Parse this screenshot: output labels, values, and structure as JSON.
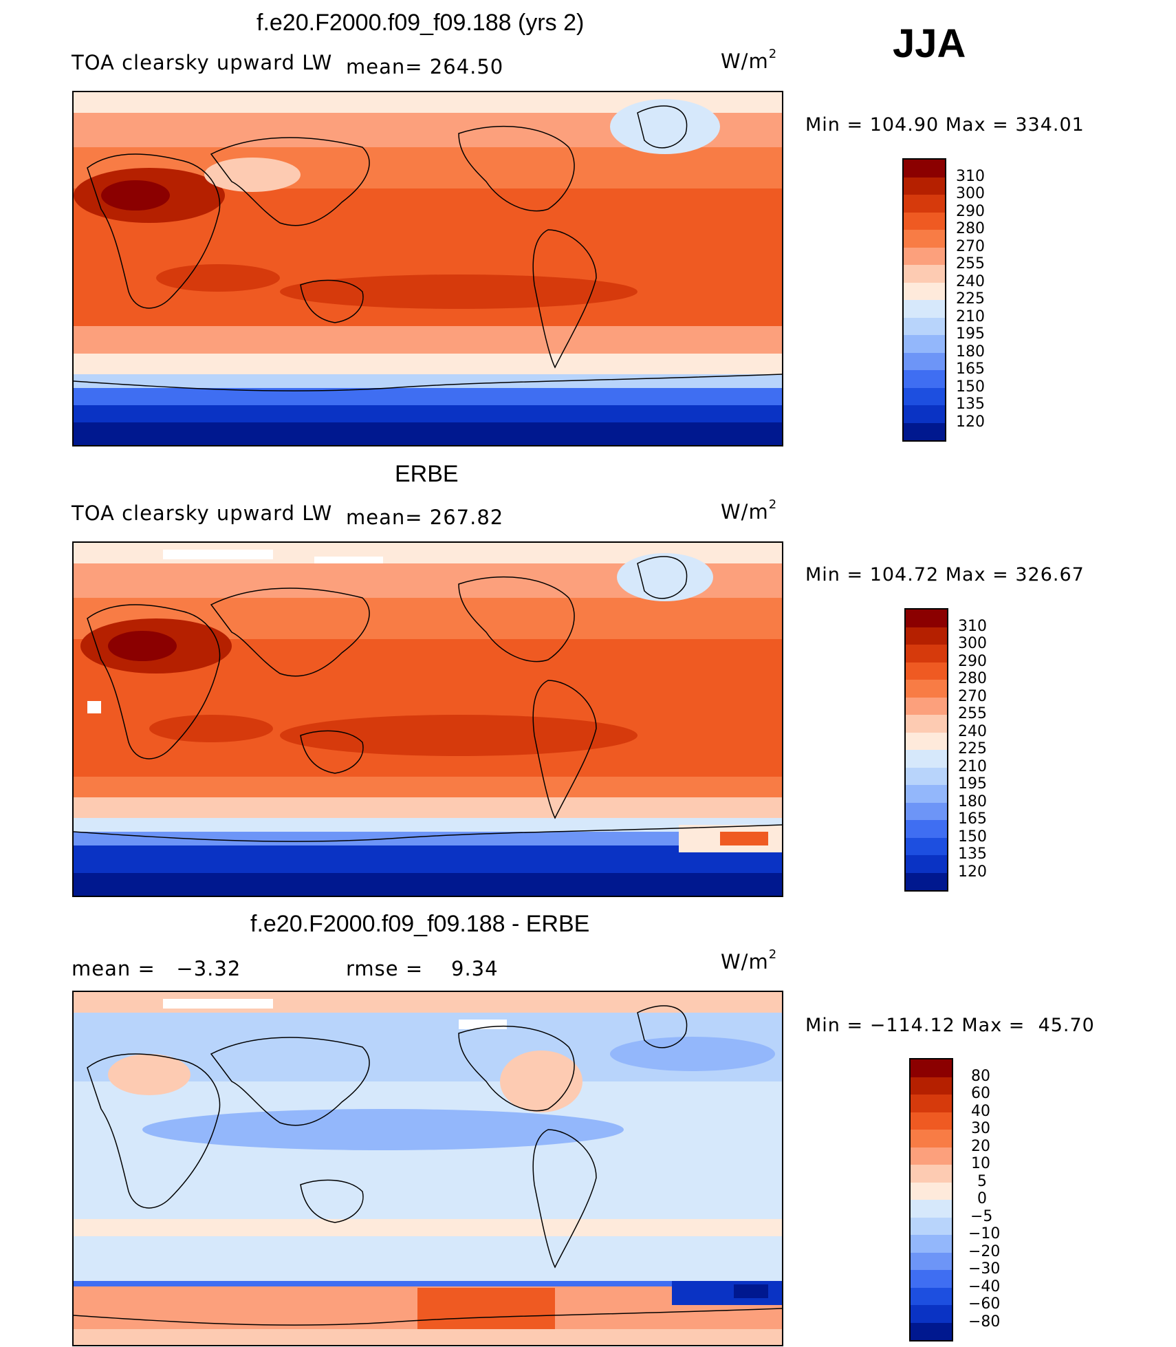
{
  "season": "JJA",
  "panels": [
    {
      "title": "f.e20.F2000.f09_f09.188 (yrs 2)",
      "variable": "TOA clearsky upward LW",
      "stat": "mean= 264.50",
      "units": "W/m",
      "units_sup": "2",
      "minmax": "Min = 104.90 Max = 334.01",
      "levels": [
        "310",
        "300",
        "290",
        "280",
        "270",
        "255",
        "240",
        "225",
        "210",
        "195",
        "180",
        "165",
        "150",
        "135",
        "120"
      ]
    },
    {
      "title": "ERBE",
      "variable": "TOA clearsky upward LW",
      "stat": "mean= 267.82",
      "units": "W/m",
      "units_sup": "2",
      "minmax": "Min = 104.72 Max = 326.67",
      "levels": [
        "310",
        "300",
        "290",
        "280",
        "270",
        "255",
        "240",
        "225",
        "210",
        "195",
        "180",
        "165",
        "150",
        "135",
        "120"
      ]
    },
    {
      "title": "f.e20.F2000.f09_f09.188 - ERBE",
      "variable": "mean =   −3.32",
      "stat": "rmse =    9.34",
      "units": "W/m",
      "units_sup": "2",
      "minmax": "Min = −114.12 Max =  45.70",
      "levels": [
        "80",
        "60",
        "40",
        "30",
        "20",
        "10",
        "5",
        "0",
        "−5",
        "−10",
        "−20",
        "−30",
        "−40",
        "−60",
        "−80"
      ]
    }
  ],
  "colors": {
    "abs_scale": [
      "#8b0000",
      "#b52000",
      "#d63a0c",
      "#ef5a22",
      "#f87c45",
      "#fca07c",
      "#fdcbb2",
      "#feeadb",
      "#d6e8fb",
      "#b8d4fb",
      "#93b7fb",
      "#6d95f7",
      "#3f6ef2",
      "#1d4fe0",
      "#0a33c4",
      "#00188f"
    ],
    "diff_scale": [
      "#8b0000",
      "#b52000",
      "#d63a0c",
      "#ef5a22",
      "#f87c45",
      "#fca07c",
      "#fdcbb2",
      "#feeadb",
      "#d6e8fb",
      "#b8d4fb",
      "#93b7fb",
      "#6d95f7",
      "#3f6ef2",
      "#1d4fe0",
      "#0a33c4",
      "#00188f"
    ]
  }
}
